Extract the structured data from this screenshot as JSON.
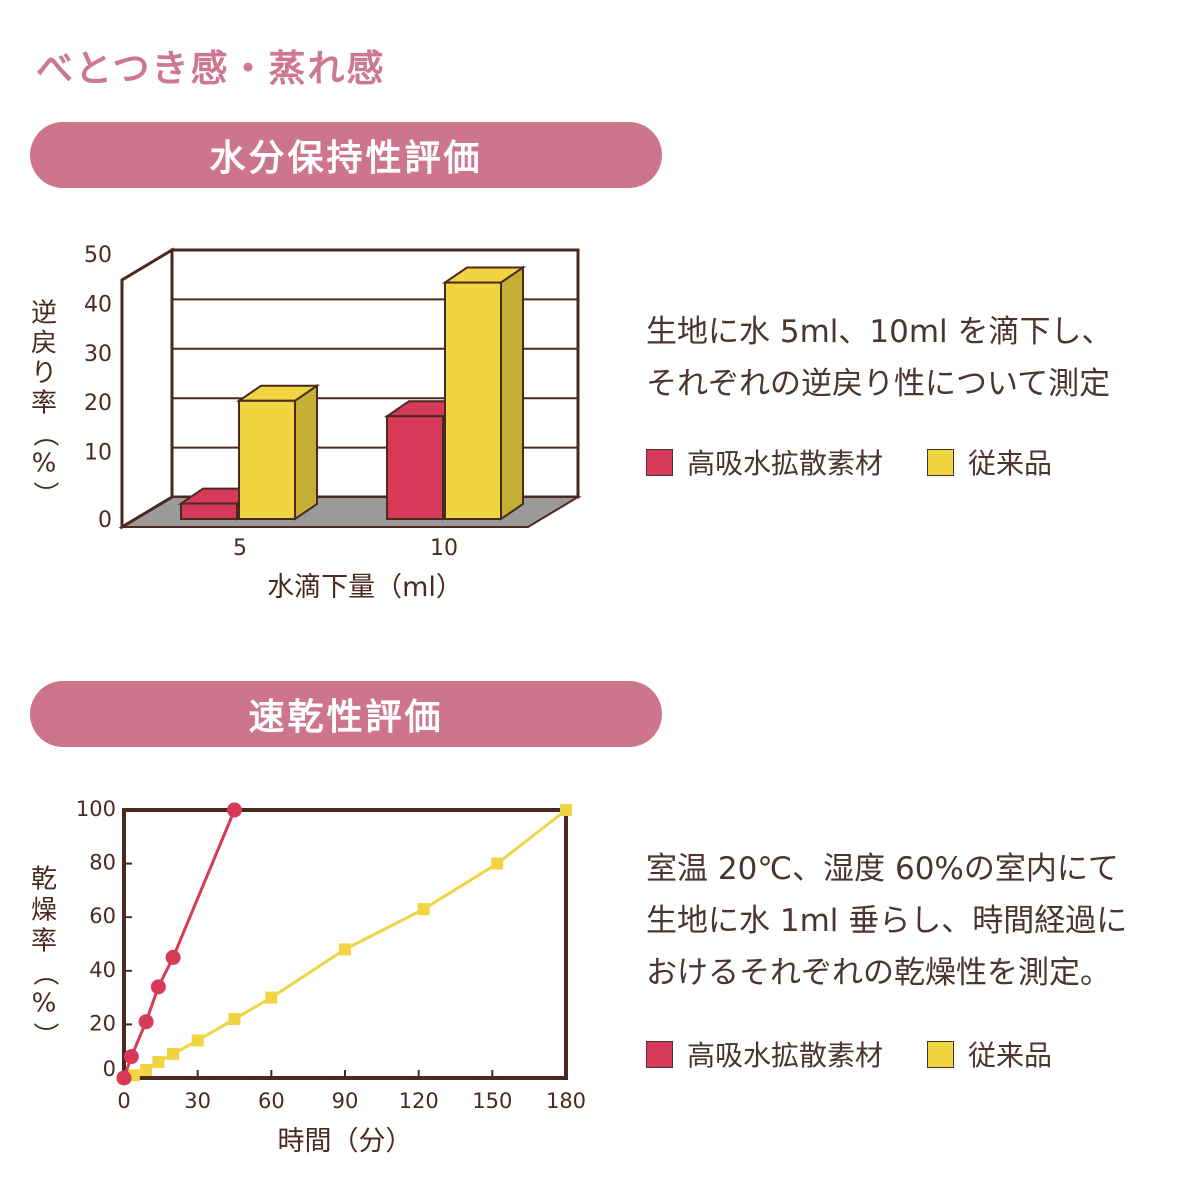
{
  "page_title": "べとつき感・蒸れ感",
  "colors": {
    "accent": "#cc758c",
    "series_a": "#d63a58",
    "series_b": "#f0d442",
    "axis": "#4a2a20",
    "floor": "#9a9a9a"
  },
  "section1": {
    "title": "水分保持性評価",
    "description": [
      "生地に水 5ml、10ml を滴下し、",
      "それぞれの逆戻り性について測定"
    ],
    "legend": [
      "高吸水拡散素材",
      "従来品"
    ]
  },
  "section2": {
    "title": "速乾性評価",
    "description": [
      "室温 20℃、湿度 60%の室内にて",
      "生地に水 1ml 垂らし、時間経過に",
      "おけるそれぞれの乾燥性を測定。"
    ],
    "legend": [
      "高吸水拡散素材",
      "従来品"
    ]
  },
  "chart_data": [
    {
      "type": "bar",
      "categories": [
        "5",
        "10"
      ],
      "series": [
        {
          "name": "高吸水拡散素材",
          "values": [
            3,
            20
          ]
        },
        {
          "name": "従来品",
          "values": [
            23,
            46
          ]
        }
      ],
      "xlabel": "水滴下量（ml）",
      "ylabel": "逆戻り率（%）",
      "ylim": [
        0,
        50
      ],
      "yticks": [
        0,
        10,
        20,
        30,
        40,
        50
      ],
      "grid": true,
      "style": "3d"
    },
    {
      "type": "line",
      "series": [
        {
          "name": "高吸水拡散素材",
          "x": [
            0,
            3,
            9,
            14,
            20,
            45
          ],
          "y": [
            0,
            8,
            21,
            34,
            45,
            100
          ]
        },
        {
          "name": "従来品",
          "x": [
            0,
            4,
            9,
            14,
            20,
            30,
            45,
            60,
            90,
            122,
            152,
            180
          ],
          "y": [
            0,
            1,
            3,
            6,
            9,
            14,
            22,
            30,
            48,
            63,
            80,
            100
          ]
        }
      ],
      "xlabel": "時間（分）",
      "ylabel": "乾燥率（%）",
      "xlim": [
        0,
        180
      ],
      "ylim": [
        0,
        100
      ],
      "xticks": [
        0,
        30,
        60,
        90,
        120,
        150,
        180
      ],
      "yticks": [
        0,
        20,
        40,
        60,
        80,
        100
      ]
    }
  ]
}
